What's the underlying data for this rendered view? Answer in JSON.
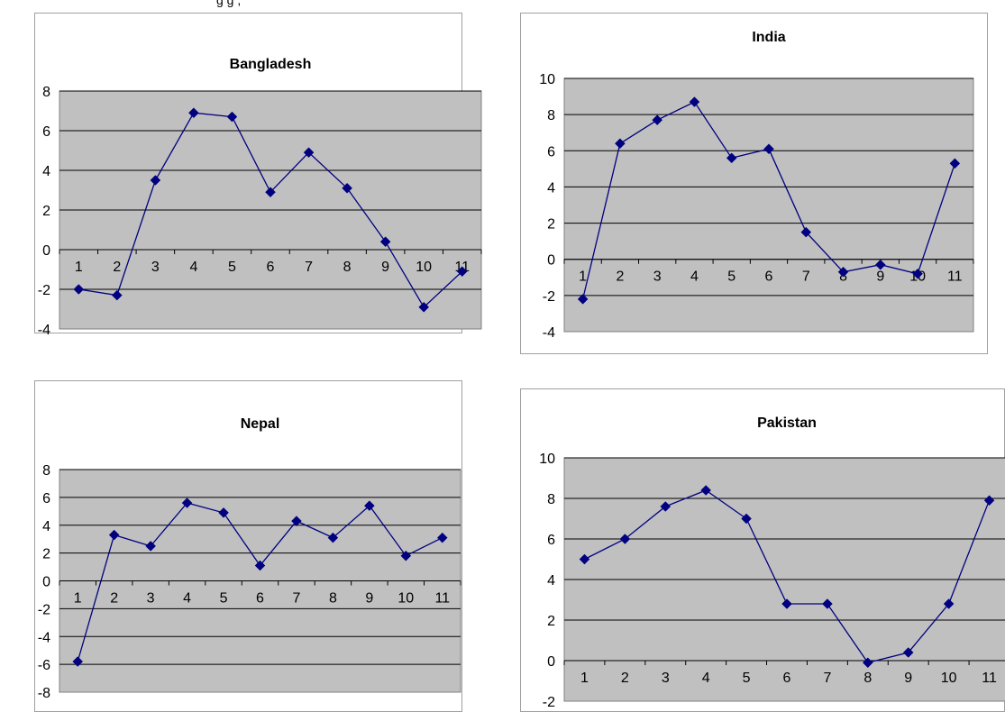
{
  "header_text": "g                     g                                   ,",
  "colors": {
    "plot_area": "#c0c0c0",
    "line": "#000080",
    "marker": "#000080",
    "grid": "#000000",
    "frame": "#a0a0a0"
  },
  "chart_data": [
    {
      "type": "line",
      "title": "Bangladesh",
      "categories": [
        "1",
        "2",
        "3",
        "4",
        "5",
        "6",
        "7",
        "8",
        "9",
        "10",
        "11"
      ],
      "values": [
        -2.0,
        -2.3,
        3.5,
        6.9,
        6.7,
        2.9,
        4.9,
        3.1,
        0.4,
        -2.9,
        -1.1
      ],
      "ylim": [
        -4,
        8
      ],
      "yticks": [
        "-4",
        "-2",
        "0",
        "2",
        "4",
        "6",
        "8"
      ],
      "grid": true
    },
    {
      "type": "line",
      "title": "India",
      "categories": [
        "1",
        "2",
        "3",
        "4",
        "5",
        "6",
        "7",
        "8",
        "9",
        "10",
        "11"
      ],
      "values": [
        -2.2,
        6.4,
        7.7,
        8.7,
        5.6,
        6.1,
        1.5,
        -0.7,
        -0.3,
        -0.8,
        5.3
      ],
      "ylim": [
        -4,
        10
      ],
      "yticks": [
        "-4",
        "-2",
        "0",
        "2",
        "4",
        "6",
        "8",
        "10"
      ],
      "grid": true
    },
    {
      "type": "line",
      "title": "Nepal",
      "categories": [
        "1",
        "2",
        "3",
        "4",
        "5",
        "6",
        "7",
        "8",
        "9",
        "10",
        "11"
      ],
      "values": [
        -5.8,
        3.3,
        2.5,
        5.6,
        4.9,
        1.1,
        4.3,
        3.1,
        5.4,
        1.8,
        3.1
      ],
      "ylim": [
        -8,
        8
      ],
      "yticks": [
        "-8",
        "-6",
        "-4",
        "-2",
        "0",
        "2",
        "4",
        "6",
        "8"
      ],
      "grid": true
    },
    {
      "type": "line",
      "title": "Pakistan",
      "categories": [
        "1",
        "2",
        "3",
        "4",
        "5",
        "6",
        "7",
        "8",
        "9",
        "10",
        "11"
      ],
      "values": [
        5.0,
        6.0,
        7.6,
        8.4,
        7.0,
        2.8,
        2.8,
        -0.1,
        0.4,
        2.8,
        7.9
      ],
      "ylim": [
        -2,
        10
      ],
      "yticks": [
        "-2",
        "0",
        "2",
        "4",
        "6",
        "8",
        "10"
      ],
      "grid": true
    }
  ]
}
